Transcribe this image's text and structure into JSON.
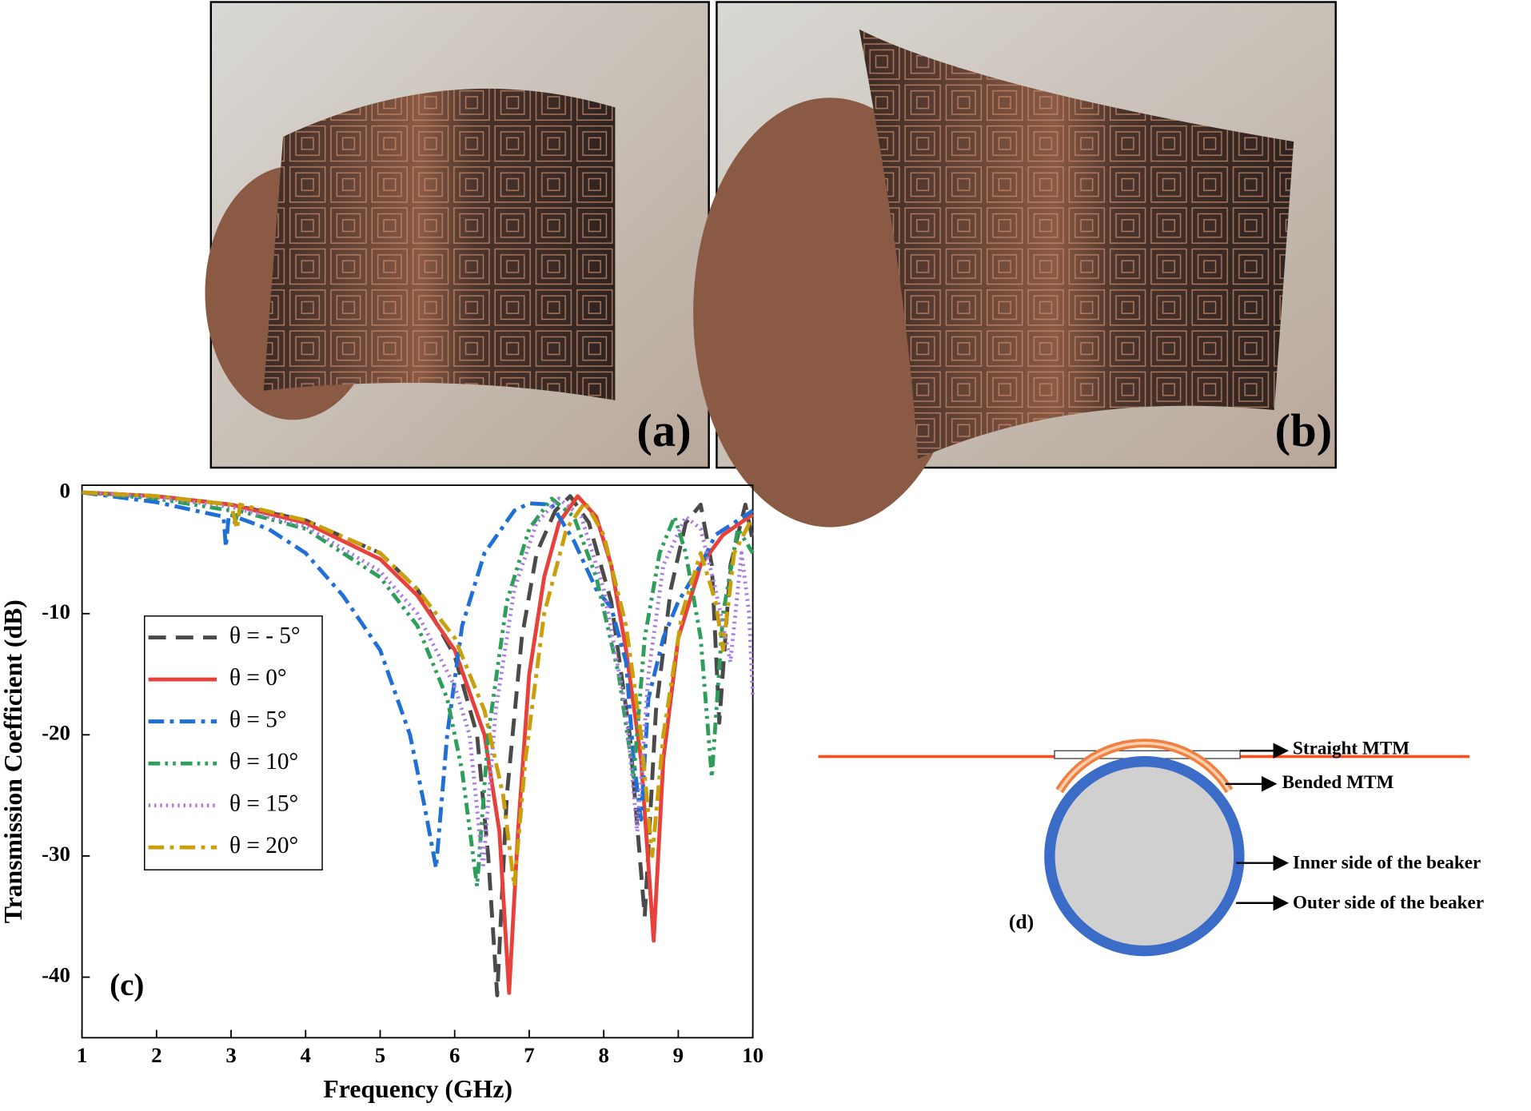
{
  "photos": [
    {
      "label": "(a)"
    },
    {
      "label": "(b)"
    }
  ],
  "chart_data": {
    "type": "line",
    "annotation": "(c)",
    "xlabel": "Frequency (GHz)",
    "ylabel": "Transmission Coefficient (dB)",
    "xlim": [
      1,
      10
    ],
    "ylim": [
      -45,
      0.6
    ],
    "xticks": [
      1,
      2,
      3,
      4,
      5,
      6,
      7,
      8,
      9,
      10
    ],
    "yticks": [
      0,
      -10,
      -20,
      -30,
      -40
    ],
    "legend": "center left",
    "series": [
      {
        "name": "θ = - 5°",
        "color": "#4a4a4a",
        "style": "dashed",
        "x": [
          1,
          2,
          3,
          4,
          5,
          5.5,
          6,
          6.3,
          6.45,
          6.57,
          6.7,
          6.9,
          7.1,
          7.35,
          7.55,
          7.8,
          8.1,
          8.35,
          8.55,
          8.7,
          8.9,
          9.1,
          9.3,
          9.45,
          9.55,
          9.7,
          9.9,
          10
        ],
        "values": [
          0,
          -0.3,
          -1,
          -2.3,
          -5,
          -8,
          -13.5,
          -20,
          -30,
          -41.5,
          -25,
          -12,
          -5,
          -1.5,
          -0.3,
          -2.5,
          -9,
          -20,
          -35,
          -18,
          -8,
          -2.5,
          -1,
          -6,
          -19,
          -6,
          -1,
          -4
        ]
      },
      {
        "name": "θ  = 0°",
        "color": "#e8413b",
        "style": "solid",
        "x": [
          1,
          2,
          3,
          4,
          5,
          5.5,
          6,
          6.4,
          6.6,
          6.73,
          6.85,
          7,
          7.2,
          7.4,
          7.65,
          7.9,
          8.1,
          8.3,
          8.5,
          8.67,
          8.8,
          9,
          9.3,
          9.6,
          10
        ],
        "values": [
          0,
          -0.3,
          -1,
          -2.5,
          -5.5,
          -8.5,
          -13,
          -20,
          -28,
          -41.3,
          -28,
          -15,
          -7,
          -2.5,
          -0.3,
          -2,
          -6,
          -13,
          -22,
          -37,
          -22,
          -12,
          -6,
          -3.5,
          -1.8
        ]
      },
      {
        "name": "θ  = 5°",
        "color": "#1f6fd6",
        "style": "dash-dot",
        "x": [
          1,
          2,
          2.9,
          2.93,
          2.97,
          3.5,
          4,
          4.5,
          5,
          5.4,
          5.6,
          5.75,
          5.9,
          6.1,
          6.4,
          6.8,
          7,
          7.3,
          7.6,
          7.9,
          8.1,
          8.3,
          8.4,
          8.5,
          8.6,
          8.8,
          9,
          9.3,
          9.5,
          10
        ],
        "values": [
          0,
          -0.8,
          -2,
          -4.5,
          -1.8,
          -3,
          -5,
          -8.5,
          -13,
          -20,
          -26,
          -31,
          -20,
          -11,
          -5,
          -1.5,
          -0.9,
          -1,
          -4,
          -8,
          -9.5,
          -14,
          -22,
          -27,
          -17,
          -12,
          -9,
          -6,
          -3.5,
          -1.5
        ]
      },
      {
        "name": "θ  = 10°",
        "color": "#2e9e5b",
        "style": "dash-dot-dot",
        "x": [
          1,
          2,
          3,
          3.05,
          3.1,
          4,
          5,
          5.5,
          5.9,
          6.1,
          6.3,
          6.45,
          6.7,
          7,
          7.3,
          7.6,
          7.9,
          8.2,
          8.4,
          8.55,
          8.75,
          8.95,
          9.1,
          9.3,
          9.45,
          9.6,
          9.8,
          10
        ],
        "values": [
          0,
          -0.5,
          -1.5,
          -2.5,
          -1.5,
          -3,
          -7,
          -11,
          -17,
          -23,
          -32.5,
          -20,
          -9,
          -3,
          -0.5,
          -2,
          -7,
          -15,
          -23.5,
          -12,
          -5,
          -2,
          -5,
          -12,
          -23.5,
          -10,
          -3,
          -5
        ]
      },
      {
        "name": "θ  = 15°",
        "color": "#a97ee0",
        "style": "dotted",
        "x": [
          1,
          2,
          3,
          4,
          5,
          5.5,
          6,
          6.2,
          6.38,
          6.55,
          6.8,
          7.1,
          7.4,
          7.7,
          8,
          8.3,
          8.45,
          8.6,
          8.8,
          9.1,
          9.3,
          9.5,
          9.7,
          9.85,
          9.95,
          10
        ],
        "values": [
          0,
          -0.4,
          -1.2,
          -2.8,
          -6.5,
          -10,
          -16,
          -20,
          -31,
          -18,
          -8,
          -2.5,
          -0.5,
          -2,
          -8,
          -18,
          -28,
          -15,
          -6,
          -2,
          -3,
          -8,
          -14,
          -5,
          -10,
          -17
        ]
      },
      {
        "name": "θ  = 20°",
        "color": "#c9a00c",
        "style": "dash-dot",
        "x": [
          1,
          2,
          3,
          3.08,
          3.12,
          4,
          5,
          5.5,
          6,
          6.4,
          6.65,
          6.8,
          6.95,
          7.2,
          7.5,
          7.75,
          8,
          8.3,
          8.5,
          8.65,
          8.8,
          9.05,
          9.3,
          9.5,
          9.6,
          9.75,
          10
        ],
        "values": [
          0,
          -0.3,
          -1,
          -3,
          -1,
          -2.3,
          -5,
          -8,
          -12,
          -18,
          -25,
          -32.5,
          -22,
          -10,
          -3,
          -0.8,
          -3.5,
          -11,
          -20,
          -30,
          -20,
          -10,
          -5,
          -9,
          -13,
          -5,
          -2
        ]
      }
    ]
  },
  "diagram": {
    "label": "(d)",
    "annotations": [
      "Straight MTM",
      "Bended MTM",
      "Inner side of the beaker",
      "Outer side of the beaker"
    ]
  }
}
